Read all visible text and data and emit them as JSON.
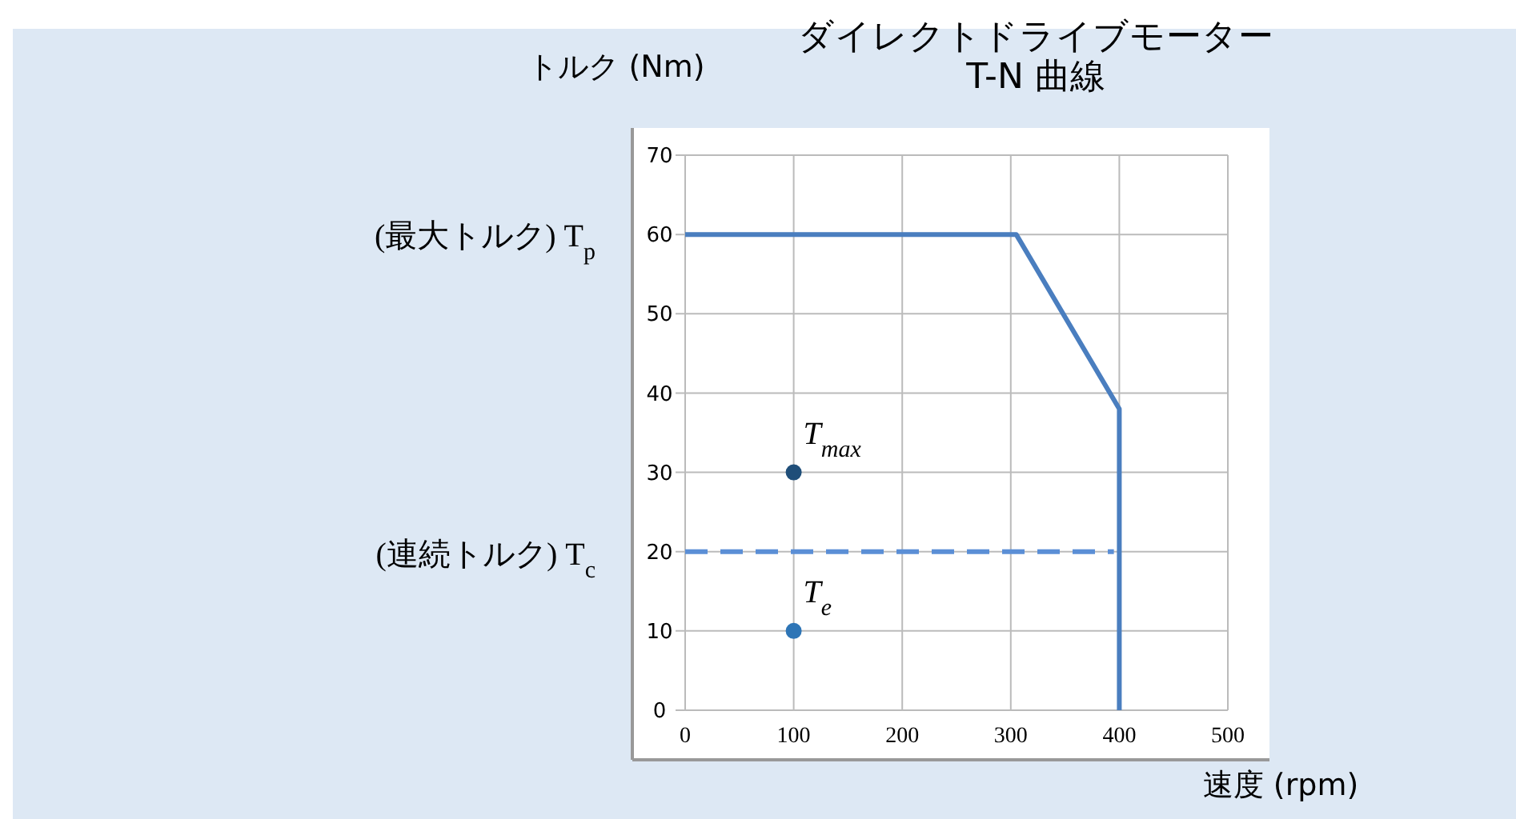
{
  "chart_data": {
    "type": "line",
    "title": "ダイレクトドライブモーター\nT-N 曲線",
    "xlabel": "速度 (rpm)",
    "ylabel": "トルク (Nm)",
    "xlim": [
      0,
      500
    ],
    "xticks": [
      0,
      100,
      200,
      300,
      400,
      500
    ],
    "ylim": [
      0,
      70
    ],
    "yticks": [
      0,
      10,
      20,
      30,
      40,
      50,
      60,
      70
    ],
    "grid": true,
    "series": [
      {
        "color": "#4a7ebf",
        "line_style": "solid",
        "x": [
          0,
          305,
          400,
          400
        ],
        "values": [
          60,
          60,
          38,
          0
        ]
      },
      {
        "color": "#5b8fd6",
        "line_style": "dashed",
        "x": [
          0,
          395
        ],
        "values": [
          20,
          20
        ]
      },
      {
        "type": "scatter",
        "color": "#1f4e79",
        "marker": "circle",
        "x": [
          100
        ],
        "values": [
          30
        ]
      },
      {
        "type": "scatter",
        "color": "#2e75b6",
        "marker": "circle",
        "x": [
          100
        ],
        "values": [
          10
        ]
      }
    ],
    "annotations": [
      "(最大トルク) T$_{p}$",
      "(連続トルク) T$_{c}$",
      {
        "text": "T$_{max}$",
        "x": 100,
        "y": 30
      },
      {
        "text": "T$_{e}$",
        "x": 100,
        "y": 10
      }
    ]
  }
}
